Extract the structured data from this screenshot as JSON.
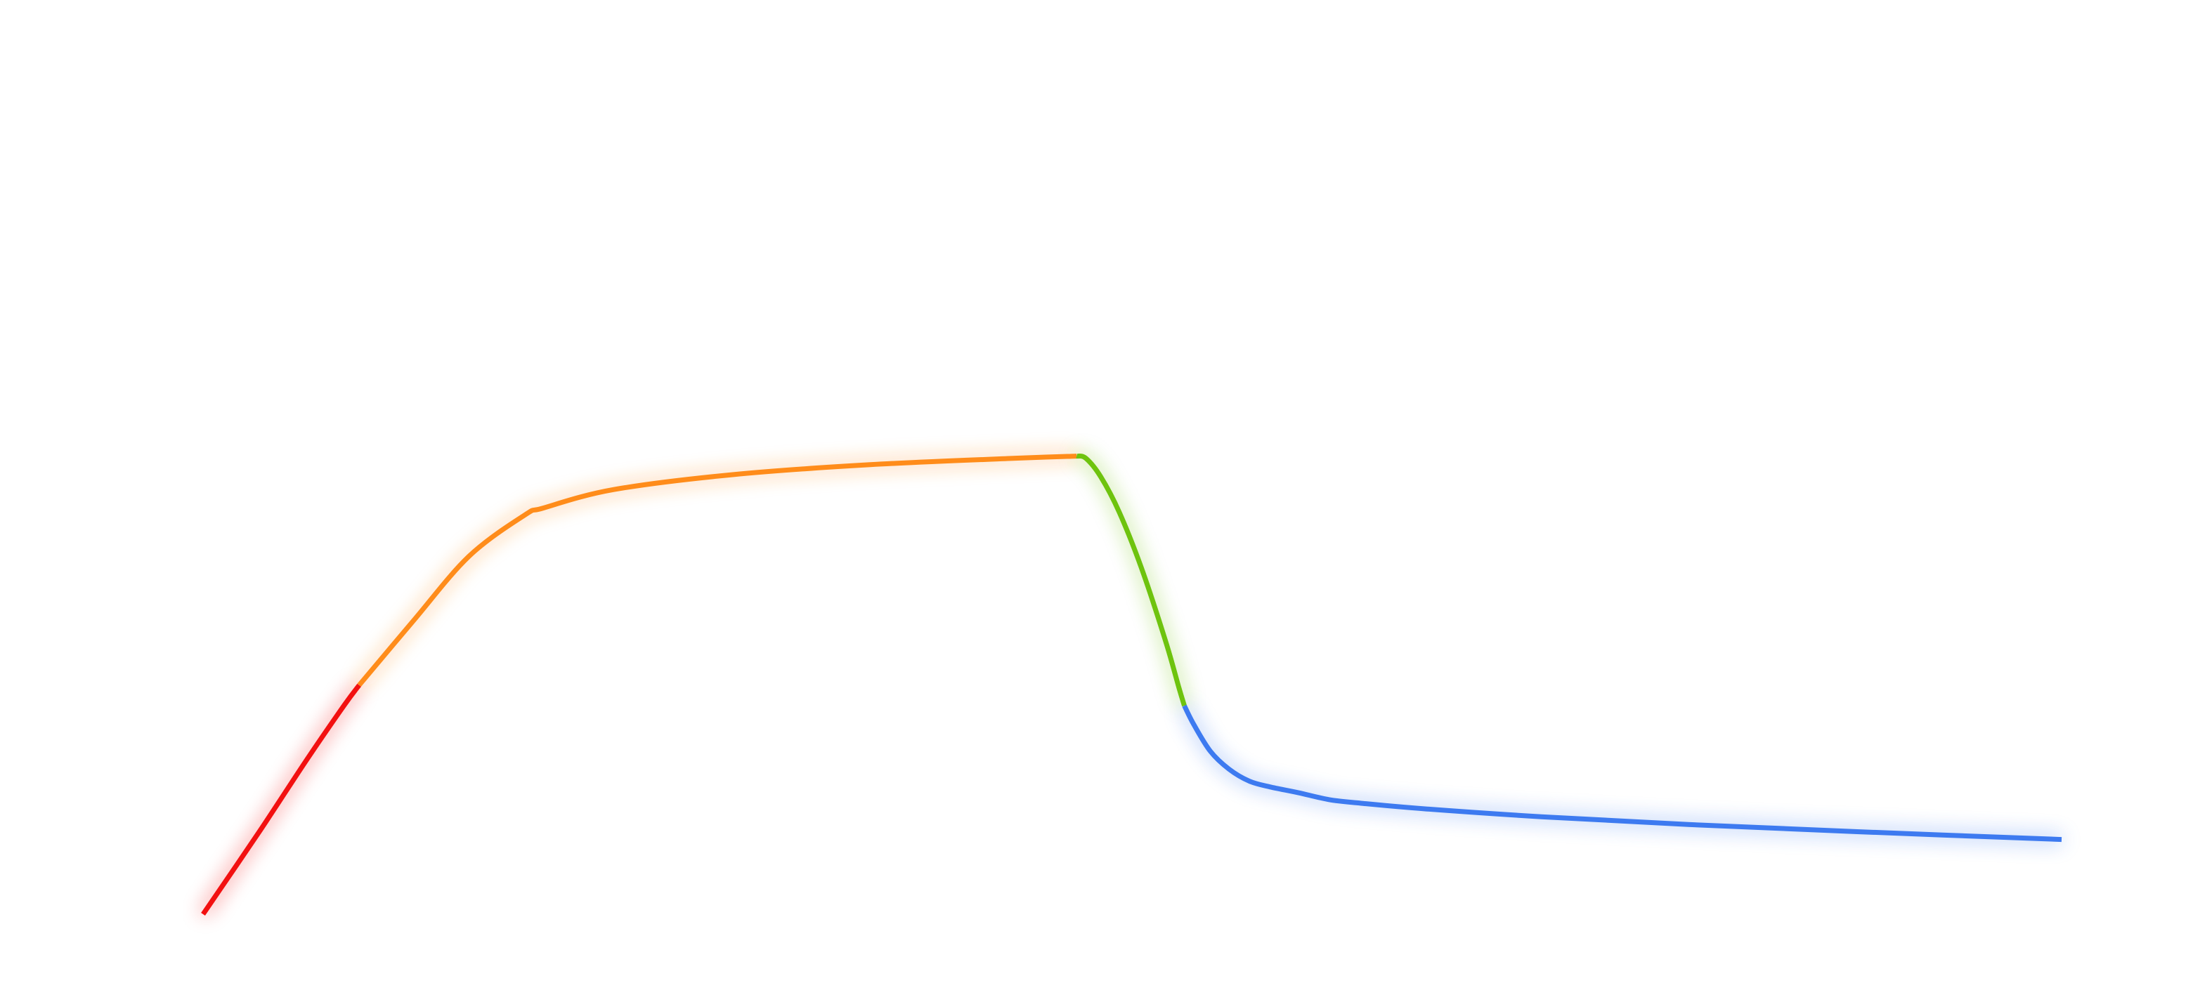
{
  "chart_data": {
    "type": "line",
    "title": "",
    "xlabel": "",
    "ylabel": "",
    "axes_visible": false,
    "grid": false,
    "legend": "none",
    "xlim": [
      0,
      100
    ],
    "ylim": [
      0,
      100
    ],
    "segments": [
      {
        "color": "#f21010",
        "points": [
          [
            0,
            0
          ],
          [
            3.0,
            11.5
          ],
          [
            5.6,
            21.8
          ],
          [
            7.6,
            29.4
          ],
          [
            8.4,
            32.2
          ]
        ]
      },
      {
        "color": "#ff8c1a",
        "points": [
          [
            8.4,
            32.2
          ],
          [
            11.3,
            41.2
          ],
          [
            14.3,
            50.3
          ],
          [
            17.3,
            56.1
          ],
          [
            18.3,
            57.1
          ],
          [
            22.1,
            59.7
          ],
          [
            28.5,
            61.8
          ],
          [
            35.9,
            63.2
          ],
          [
            43.7,
            64.1
          ],
          [
            47.0,
            64.4
          ]
        ]
      },
      {
        "color": "#6ec30e",
        "points": [
          [
            47.0,
            64.4
          ],
          [
            47.5,
            64.1
          ],
          [
            48.3,
            61.5
          ],
          [
            49.3,
            56.5
          ],
          [
            50.5,
            48.6
          ],
          [
            51.8,
            38.3
          ],
          [
            52.5,
            31.9
          ],
          [
            52.8,
            29.3
          ]
        ]
      },
      {
        "color": "#3d7af0",
        "points": [
          [
            52.8,
            29.3
          ],
          [
            53.3,
            26.7
          ],
          [
            54.2,
            22.9
          ],
          [
            55.2,
            20.4
          ],
          [
            56.3,
            18.7
          ],
          [
            57.4,
            17.9
          ],
          [
            58.9,
            17.1
          ],
          [
            60.6,
            16.1
          ],
          [
            62.3,
            15.6
          ],
          [
            65.8,
            14.8
          ],
          [
            72.0,
            13.7
          ],
          [
            80.0,
            12.6
          ],
          [
            89.0,
            11.6
          ],
          [
            100,
            10.5
          ]
        ]
      }
    ]
  }
}
